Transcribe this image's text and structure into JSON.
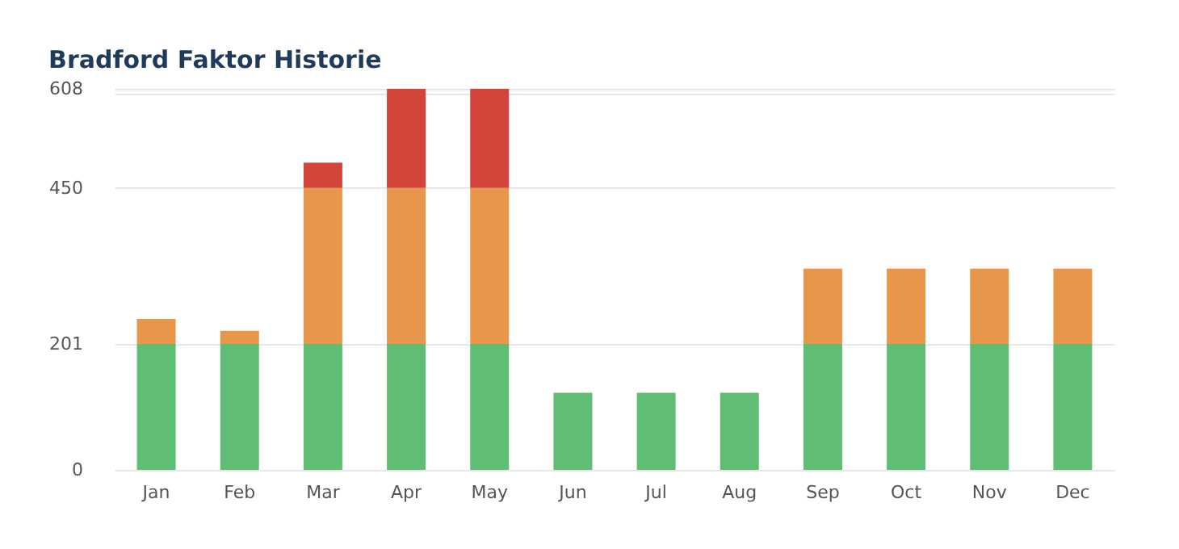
{
  "chart_data": {
    "type": "bar",
    "title": "Bradford Faktor Historie",
    "stacked": true,
    "categories": [
      "Jan",
      "Feb",
      "Mar",
      "Apr",
      "May",
      "Jun",
      "Jul",
      "Aug",
      "Sep",
      "Oct",
      "Nov",
      "Dec"
    ],
    "series": [
      {
        "color": "#5fbe74",
        "values": [
          201,
          201,
          201,
          201,
          201,
          123,
          123,
          123,
          201,
          201,
          201,
          201
        ]
      },
      {
        "color": "#e8974a",
        "values": [
          40,
          21,
          249,
          249,
          249,
          null,
          null,
          null,
          120,
          120,
          120,
          120
        ]
      },
      {
        "color": "#d3443a",
        "values": [
          null,
          null,
          40,
          158,
          158,
          null,
          null,
          null,
          null,
          null,
          null,
          null
        ]
      }
    ],
    "ylim": [
      0,
      608
    ],
    "yticks": [
      0,
      201,
      450,
      {
        "value": 600,
        "label": null
      },
      608
    ],
    "grid": "y"
  }
}
